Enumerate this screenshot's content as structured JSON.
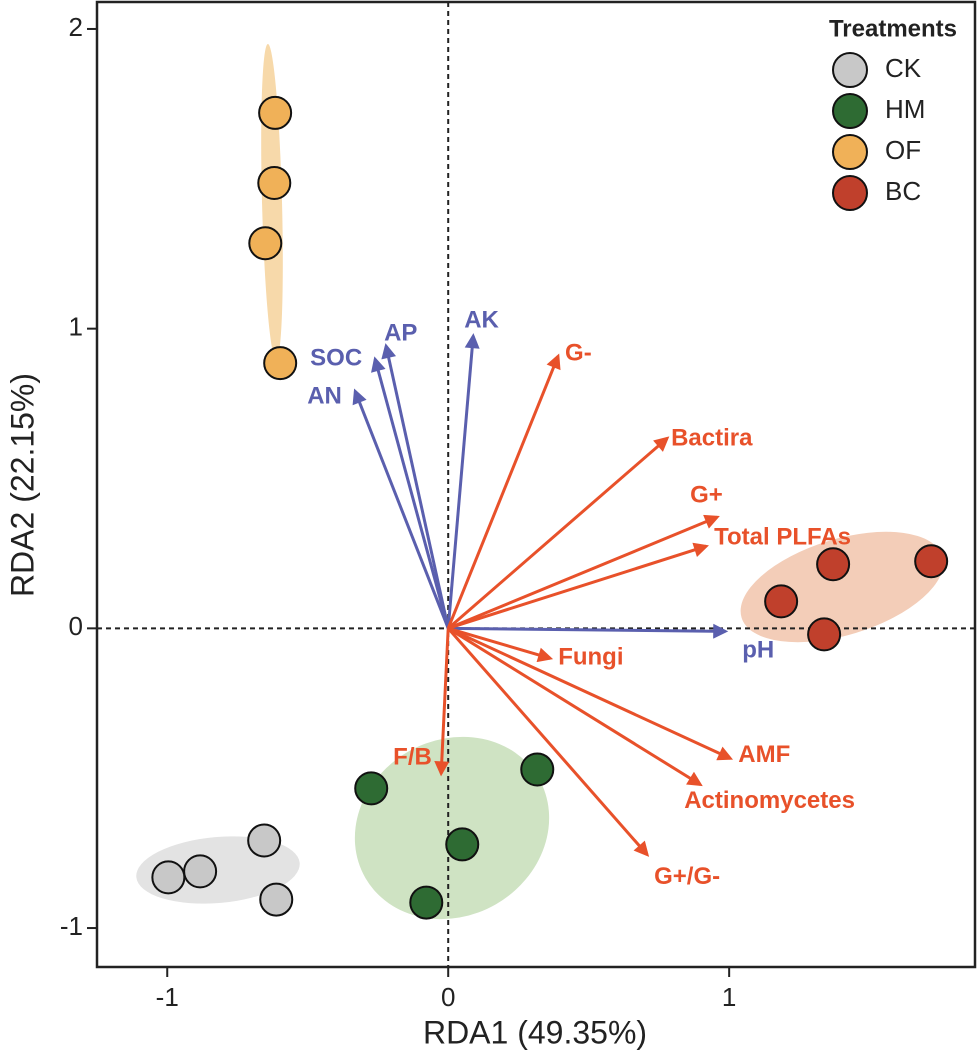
{
  "chart_data": {
    "type": "scatter",
    "xlabel": "RDA1 (49.35%)",
    "ylabel": "RDA2 (22.15%)",
    "xlim": [
      -1.25,
      1.875
    ],
    "ylim": [
      -1.13,
      2.09
    ],
    "xticks": [
      -1,
      0,
      1
    ],
    "yticks": [
      -1,
      0,
      1,
      2
    ],
    "legend_title": "Treatments",
    "legend": "upper right",
    "series": [
      {
        "name": "CK",
        "color": "#c8c8c8",
        "x": [
          -0.655,
          -0.883,
          -0.996,
          -0.612
        ],
        "y": [
          -0.708,
          -0.811,
          -0.831,
          -0.905
        ]
      },
      {
        "name": "HM",
        "color": "#2e6b33",
        "x": [
          -0.274,
          0.317,
          0.05,
          -0.078
        ],
        "y": [
          -0.534,
          -0.471,
          -0.721,
          -0.915
        ]
      },
      {
        "name": "OF",
        "color": "#f0b158",
        "x": [
          -0.616,
          -0.619,
          -0.651,
          -0.598
        ],
        "y": [
          1.72,
          1.486,
          1.285,
          0.885
        ]
      },
      {
        "name": "BC",
        "color": "#c0402c",
        "x": [
          1.37,
          1.719,
          1.185,
          1.338
        ],
        "y": [
          0.214,
          0.224,
          0.09,
          -0.02
        ]
      }
    ],
    "vectors": [
      {
        "color": "#5a5fae",
        "labels": [
          "AN",
          "SOC",
          "AP",
          "AK",
          "pH"
        ],
        "x": [
          -0.331,
          -0.26,
          -0.221,
          0.089,
          0.986
        ],
        "y": [
          0.791,
          0.898,
          0.942,
          0.975,
          -0.01
        ]
      },
      {
        "color": "#e8512a",
        "labels": [
          "G-",
          "Bactira",
          "G+",
          "Total PLFAs",
          "Fungi",
          "AMF",
          "Actinomycetes",
          "G+/G-",
          "F/B"
        ],
        "x": [
          0.391,
          0.779,
          0.957,
          0.918,
          0.363,
          1.004,
          0.897,
          0.708,
          -0.025
        ],
        "y": [
          0.908,
          0.634,
          0.371,
          0.274,
          -0.1,
          -0.434,
          -0.521,
          -0.755,
          -0.484
        ]
      }
    ]
  }
}
